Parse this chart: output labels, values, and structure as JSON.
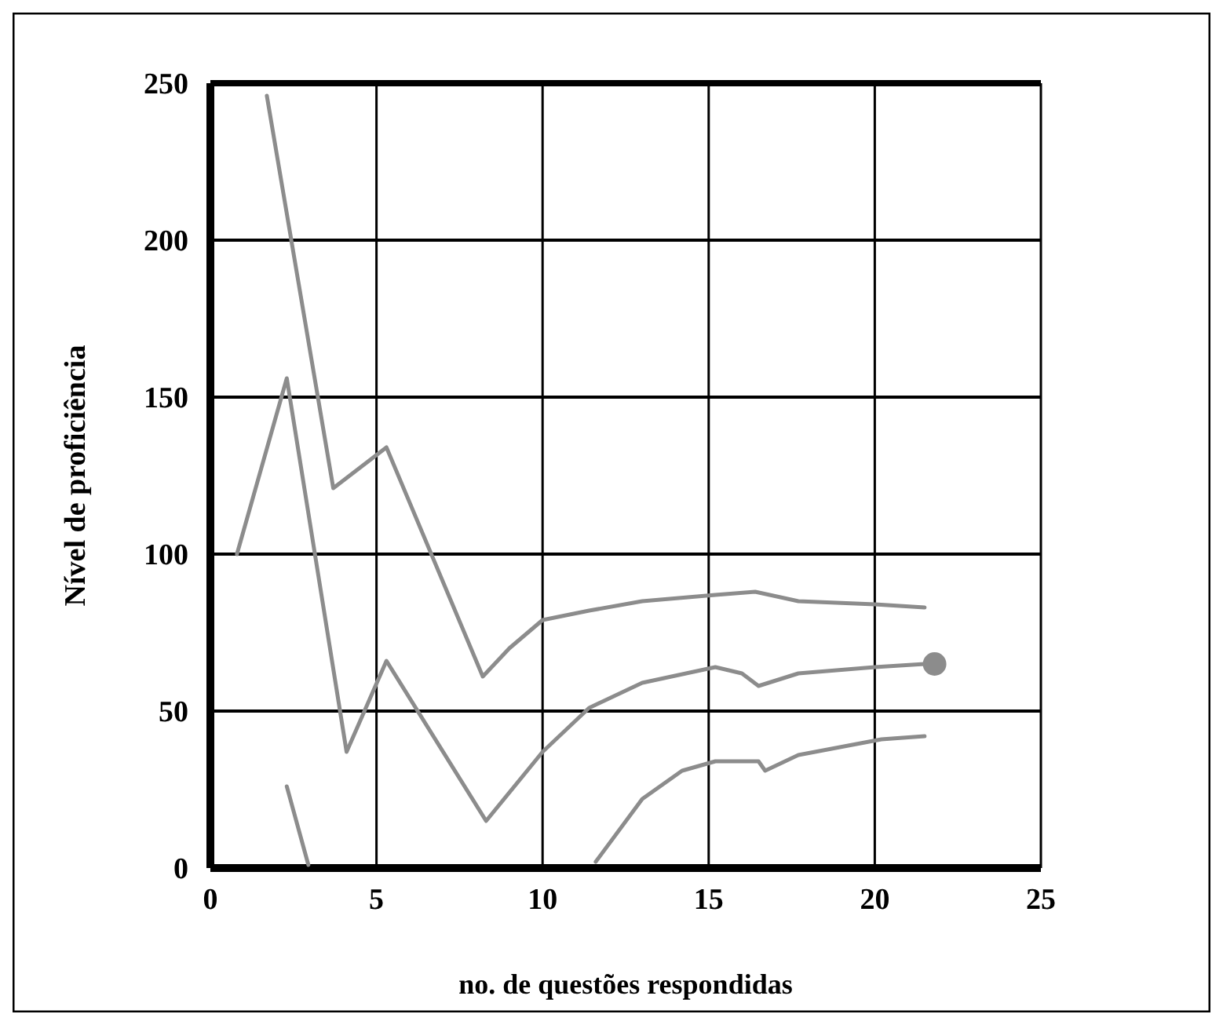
{
  "chart_data": {
    "type": "line",
    "xlabel": "no. de questões respondidas",
    "ylabel": "Nível de proficiência",
    "xlim": [
      0,
      25
    ],
    "ylim": [
      0,
      250
    ],
    "xticks": [
      0,
      5,
      10,
      15,
      20,
      25
    ],
    "yticks": [
      0,
      50,
      100,
      150,
      200,
      250
    ],
    "grid": true,
    "marker": "none",
    "line_style": "solid",
    "series": [
      {
        "color": "#8c8c8c",
        "x": [
          1.7,
          3.7,
          5.3,
          8.2,
          9,
          10,
          11.4,
          13,
          15.2,
          16.4,
          17.7,
          20,
          21.5
        ],
        "values": [
          246,
          121,
          134,
          61,
          70,
          79,
          82,
          85,
          87,
          88,
          85,
          84,
          83
        ]
      },
      {
        "color": "#8c8c8c",
        "x": [
          0.8,
          2.3,
          4.1,
          5.3,
          8.3,
          10,
          11.4,
          13,
          15.2,
          16,
          16.5,
          17.7,
          20,
          21.5
        ],
        "values": [
          100,
          156,
          37,
          66,
          15,
          37,
          51,
          59,
          64,
          62,
          58,
          62,
          64,
          65
        ]
      },
      {
        "color": "#8c8c8c",
        "x": [
          2.3,
          2.95,
          7,
          11.6,
          13,
          14.2,
          15.2,
          16.5,
          16.7,
          17.7,
          20.2,
          21.5
        ],
        "values": [
          26,
          1,
          null,
          2,
          22,
          31,
          34,
          34,
          31,
          36,
          41,
          42
        ]
      },
      {
        "type": "scatter",
        "marker": "circle",
        "color": "#8c8c8c",
        "x": [
          21.8
        ],
        "values": [
          65
        ]
      }
    ]
  }
}
